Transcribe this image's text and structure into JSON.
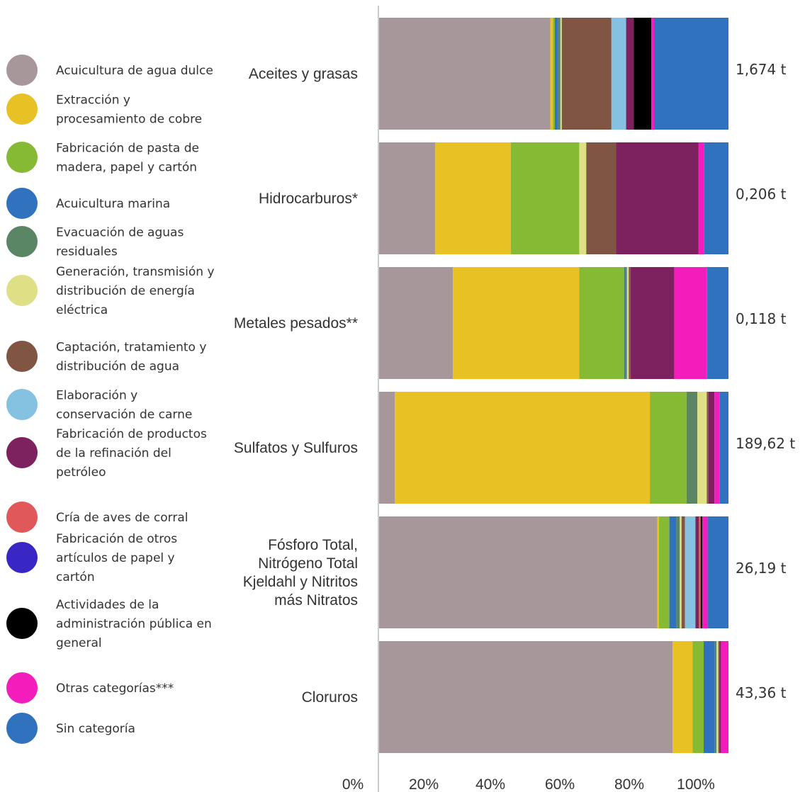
{
  "chart_data": {
    "type": "bar",
    "orientation": "horizontal",
    "stacked": "percent",
    "xlim": [
      0,
      100
    ],
    "x_ticks": [
      "0%",
      "20%",
      "40%",
      "60%",
      "80%",
      "100%"
    ],
    "legend_position": "left",
    "series": [
      {
        "name": "Acuicultura de agua dulce",
        "color": "#a7979b",
        "values": [
          49.0,
          16.0,
          21.0,
          4.5,
          80.0,
          84.0
        ]
      },
      {
        "name": "Extracción y procesamiento de cobre",
        "color": "#e8c124",
        "values": [
          0.8,
          21.5,
          36.0,
          73.0,
          0.5,
          5.7
        ]
      },
      {
        "name": "Fabricación de pasta de madera, papel y cartón",
        "color": "#86b934",
        "values": [
          0.5,
          19.5,
          12.8,
          10.5,
          3.0,
          3.2
        ]
      },
      {
        "name": "Acuicultura marina",
        "color": "#3172bf",
        "values": [
          0.8,
          0,
          0.4,
          0,
          2.0,
          3.2
        ]
      },
      {
        "name": "Evacuación de aguas residuales",
        "color": "#5b8666",
        "values": [
          0.8,
          0,
          0.4,
          3.1,
          1.0,
          0.5
        ]
      },
      {
        "name": "Generación, transmisión y distribución de energía eléctrica",
        "color": "#dfdf86",
        "values": [
          0.4,
          2.0,
          0.5,
          2.7,
          0.5,
          0.5
        ]
      },
      {
        "name": "Captación, tratamiento y distribución de agua",
        "color": "#805543",
        "values": [
          14.2,
          8.5,
          0.5,
          0.5,
          1.0,
          0.3
        ]
      },
      {
        "name": "Elaboración y conservación de carne",
        "color": "#85c2e2",
        "values": [
          4.2,
          0,
          0,
          0,
          3.0,
          0
        ]
      },
      {
        "name": "Fabricación de productos de la refinación del petróleo",
        "color": "#7d225e",
        "values": [
          2.2,
          23.5,
          12.5,
          1.7,
          1.0,
          0.5
        ]
      },
      {
        "name": "Cría de aves de corral",
        "color": "#e0585a",
        "values": [
          0,
          0,
          0,
          0,
          0.5,
          0
        ]
      },
      {
        "name": "Fabricación de otros artículos de papel y cartón",
        "color": "#3827c4",
        "values": [
          0,
          0,
          0,
          0,
          0,
          0
        ]
      },
      {
        "name": "Actividades de la administración pública en general",
        "color": "#000000",
        "values": [
          5.0,
          0,
          0,
          0,
          0.5,
          0
        ]
      },
      {
        "name": "Otras categorías***",
        "color": "#f21dbb",
        "values": [
          0.8,
          1.5,
          9.3,
          1.5,
          1.5,
          2.1
        ]
      },
      {
        "name": "Sin categoría",
        "color": "#3172bf",
        "values": [
          21.3,
          7.0,
          6.1,
          2.5,
          6.0,
          0
        ]
      }
    ],
    "categories": [
      {
        "label": [
          "Aceites y grasas"
        ],
        "total": "1,674 t"
      },
      {
        "label": [
          "Hidrocarburos*"
        ],
        "total": "0,206 t"
      },
      {
        "label": [
          "Metales pesados**"
        ],
        "total": "0,118 t"
      },
      {
        "label": [
          "Sulfatos y Sulfuros"
        ],
        "total": "189,62 t"
      },
      {
        "label": [
          "Fósforo Total,",
          "Nitrógeno Total",
          "Kjeldahl y Nitritos",
          "más Nitratos"
        ],
        "total": "26,19 t"
      },
      {
        "label": [
          "Cloruros"
        ],
        "total": "43,36 t"
      }
    ],
    "legend": [
      [
        "Acuicultura de agua dulce"
      ],
      [
        "Extracción y",
        "procesamiento de cobre"
      ],
      [
        "Fabricación de pasta de",
        "madera, papel y cartón"
      ],
      [
        "Acuicultura marina"
      ],
      [
        "Evacuación de aguas",
        "residuales"
      ],
      [
        "Generación, transmisión y",
        "distribución de energía",
        "eléctrica"
      ],
      [
        "Captación, tratamiento y",
        "distribución de agua"
      ],
      [
        "Elaboración y",
        "conservación de carne"
      ],
      [
        "Fabricación de productos",
        "de la refinación del",
        "petróleo"
      ],
      [
        "Cría de aves de corral"
      ],
      [
        "Fabricación de otros",
        "artículos de papel y",
        "cartón"
      ],
      [
        "Actividades de la",
        "administración pública en",
        "general"
      ],
      [
        "Otras categorías***"
      ],
      [
        "Sin categoría"
      ]
    ]
  }
}
